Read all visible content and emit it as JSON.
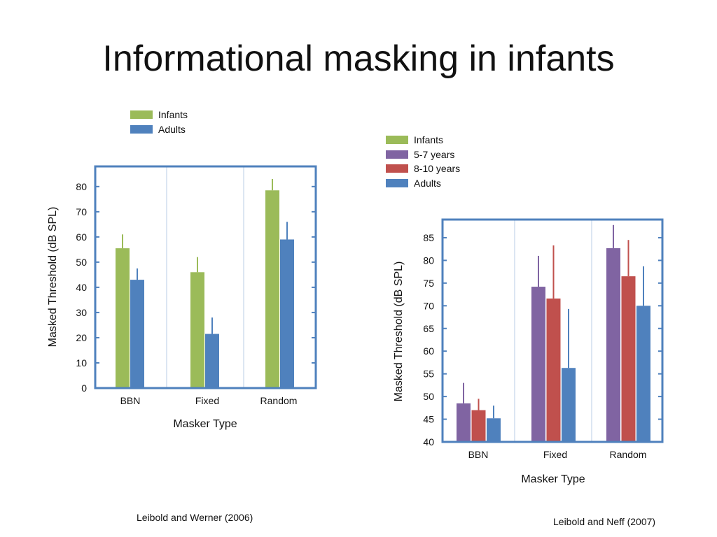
{
  "slide": {
    "title": "Informational masking in infants",
    "caption_left": "Leibold and Werner (2006)",
    "caption_right": "Leibold and Neff  (2007)"
  },
  "chart_data": [
    {
      "type": "bar",
      "categories": [
        "BBN",
        "Fixed",
        "Random"
      ],
      "xlabel": "Masker Type",
      "ylabel": "Masked Threshold (dB SPL)",
      "ylim": [
        0,
        88
      ],
      "yticks": [
        0,
        10,
        20,
        30,
        40,
        50,
        60,
        70,
        80
      ],
      "legend_placement": "top",
      "series": [
        {
          "name": "Infants",
          "color": "#9BBB59",
          "values": [
            55.5,
            46,
            78.5
          ],
          "error_upper": [
            61,
            52,
            83
          ]
        },
        {
          "name": "Adults",
          "color": "#4F81BD",
          "values": [
            43,
            21.5,
            59
          ],
          "error_upper": [
            47.5,
            28,
            66
          ]
        }
      ]
    },
    {
      "type": "bar",
      "categories": [
        "BBN",
        "Fixed",
        "Random"
      ],
      "xlabel": "Masker Type",
      "ylabel": "Masked Threshold (dB SPL)",
      "ylim": [
        40,
        89
      ],
      "yticks": [
        40,
        45,
        50,
        55,
        60,
        65,
        70,
        75,
        80,
        85
      ],
      "legend_placement": "top",
      "series": [
        {
          "name": "Infants",
          "color": "#9BBB59",
          "values": [
            null,
            null,
            null
          ],
          "error_upper": [
            null,
            null,
            null
          ]
        },
        {
          "name": "5-7 years",
          "color": "#8064A2",
          "values": [
            48.5,
            74.2,
            82.7
          ],
          "error_upper": [
            53,
            81,
            87.8
          ]
        },
        {
          "name": "8-10 years",
          "color": "#C0504D",
          "values": [
            47,
            71.6,
            76.5
          ],
          "error_upper": [
            49.5,
            83.3,
            84.5
          ]
        },
        {
          "name": "Adults",
          "color": "#4F81BD",
          "values": [
            45.2,
            56.3,
            70
          ],
          "error_upper": [
            48,
            69.3,
            78.7
          ]
        }
      ]
    }
  ]
}
